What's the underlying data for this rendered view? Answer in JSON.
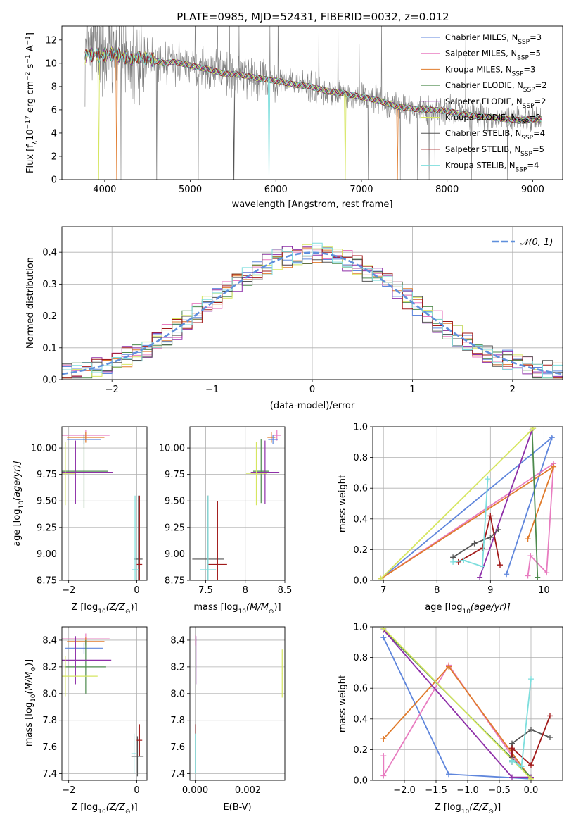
{
  "figure_title": "PLATE=0985, MJD=52431, FIBERID=0032, z=0.012",
  "colors": {
    "Chabrier MILES": "#5f86dc",
    "Salpeter MILES": "#e87cc0",
    "Kroupa MILES": "#e07b2c",
    "Chabrier ELODIE": "#4c8a4c",
    "Salpeter ELODIE": "#8e2fa8",
    "Kroupa ELODIE": "#d6e660",
    "Chabrier STELIB": "#555555",
    "Salpeter STELIB": "#a11a1a",
    "Kroupa STELIB": "#7ddedd",
    "data": "#808080",
    "normal_curve": "#5f8fdc"
  },
  "chart_data": [
    {
      "id": "spectrum",
      "type": "line",
      "xlabel": "wavelength [Angstrom, rest frame]",
      "ylabel_main": "Flux [f",
      "ylabel_sub": "λ",
      "ylabel_rest": "10",
      "ylabel_sup1": "−17",
      "ylabel_tail1": " erg cm",
      "ylabel_sup2": "−2",
      "ylabel_tail2": " s",
      "ylabel_sup3": "−1",
      "ylabel_tail3": " A",
      "ylabel_sup4": "−1",
      "ylabel_end": "]",
      "xlim": [
        3500,
        9350
      ],
      "ylim": [
        0,
        13.2
      ],
      "xticks": [
        4000,
        5000,
        6000,
        7000,
        8000,
        9000
      ],
      "yticks": [
        0,
        2,
        4,
        6,
        8,
        10,
        12
      ],
      "legend_position": "top-right",
      "legend": [
        {
          "base": "Chabrier MILES, N",
          "sub": "SSP",
          "rest": "=3"
        },
        {
          "base": "Salpeter MILES, N",
          "sub": "SSP",
          "rest": "=5"
        },
        {
          "base": "Kroupa MILES, N",
          "sub": "SSP",
          "rest": "=3"
        },
        {
          "base": "Chabrier ELODIE, N",
          "sub": "SSP",
          "rest": "=2"
        },
        {
          "base": "Salpeter ELODIE, N",
          "sub": "SSP",
          "rest": "=2"
        },
        {
          "base": "Kroupa ELODIE, N",
          "sub": "SSP",
          "rest": "=2"
        },
        {
          "base": "Chabrier STELIB, N",
          "sub": "SSP",
          "rest": "=4"
        },
        {
          "base": "Salpeter STELIB, N",
          "sub": "SSP",
          "rest": "=5"
        },
        {
          "base": "Kroupa STELIB, N",
          "sub": "SSP",
          "rest": "=4"
        }
      ],
      "model_x": [
        3750,
        3800,
        3850,
        3900,
        3950,
        4000,
        4100,
        4200,
        4300,
        4400,
        4500,
        4600,
        4700,
        4800,
        4900,
        5000,
        5200,
        5400,
        5600,
        5800,
        6000,
        6200,
        6400,
        6600,
        6800,
        7000,
        7200,
        7400,
        7600,
        7800,
        8000,
        8200,
        8400,
        8600,
        8800,
        9000,
        9100
      ],
      "model_y": [
        10.2,
        10.9,
        10.7,
        10.8,
        10.6,
        10.7,
        10.8,
        10.6,
        10.3,
        10.5,
        10.4,
        10.2,
        10.0,
        10.1,
        10.0,
        9.8,
        9.5,
        9.1,
        9.0,
        8.7,
        8.5,
        8.2,
        8.0,
        7.6,
        7.4,
        7.1,
        6.8,
        6.3,
        6.1,
        6.0,
        5.9,
        5.6,
        5.4,
        5.3,
        5.1,
        5.2,
        5.2
      ],
      "model_dips": [
        {
          "model": "Kroupa ELODIE",
          "x": [
            3930,
            6810
          ]
        },
        {
          "model": "Kroupa MILES",
          "x": [
            4140,
            7420
          ]
        },
        {
          "model": "Kroupa STELIB",
          "x": [
            5920
          ]
        },
        {
          "model": "Chabrier STELIB",
          "x": [
            5510
          ]
        }
      ]
    },
    {
      "id": "residuals",
      "type": "histogram",
      "xlabel": "(data-model)/error",
      "ylabel": "Normed distribution",
      "xlim": [
        -2.5,
        2.5
      ],
      "ylim": [
        0,
        0.48
      ],
      "xticks": [
        -2,
        -1,
        0,
        1,
        2
      ],
      "yticks": [
        0.0,
        0.1,
        0.2,
        0.3,
        0.4
      ],
      "legend_position": "top-right",
      "legend": [
        {
          "text": "𝒩(0, 1)"
        }
      ],
      "bin_width": 0.1
    },
    {
      "id": "age-vs-Z",
      "type": "errorbar",
      "xlabel": "Z [log",
      "xlabel_sub": "10",
      "xlabel_rest": "(Z/Z",
      "xlabel_sub2": "⊙",
      "xlabel_end": ")]",
      "ylabel": "age  [log",
      "ylabel_sub": "10",
      "ylabel_rest": "(age/yr)]",
      "xlim": [
        -2.2,
        0.3
      ],
      "ylim": [
        8.75,
        10.2
      ],
      "xticks": [
        -2,
        0
      ],
      "yticks": [
        8.75,
        9.0,
        9.25,
        9.5,
        9.75,
        10.0
      ],
      "points": [
        {
          "model": "Salpeter MILES",
          "x": -1.5,
          "y": 10.12,
          "xerr": 0.7,
          "yerr": 0.05
        },
        {
          "model": "Kroupa MILES",
          "x": -1.5,
          "y": 10.1,
          "xerr": 0.55,
          "yerr": 0.05
        },
        {
          "model": "Chabrier MILES",
          "x": -1.55,
          "y": 10.08,
          "xerr": 0.5,
          "yerr": 0.04
        },
        {
          "model": "Chabrier ELODIE",
          "x": -1.55,
          "y": 9.78,
          "xerr": 0.7,
          "yerr": 0.35
        },
        {
          "model": "Salpeter ELODIE",
          "x": -1.8,
          "y": 9.77,
          "xerr": 1.1,
          "yerr": 0.3
        },
        {
          "model": "Kroupa ELODIE",
          "x": -2.1,
          "y": 9.76,
          "xerr": 0.3,
          "yerr": 0.3
        },
        {
          "model": "Chabrier STELIB",
          "x": 0.05,
          "y": 8.95,
          "xerr": 0.12,
          "yerr": 0.6
        },
        {
          "model": "Salpeter STELIB",
          "x": 0.08,
          "y": 8.9,
          "xerr": 0.08,
          "yerr": 0.65
        },
        {
          "model": "Kroupa STELIB",
          "x": -0.05,
          "y": 8.85,
          "xerr": 0.1,
          "yerr": 0.7
        }
      ]
    },
    {
      "id": "age-vs-mass",
      "type": "errorbar",
      "xlabel": "mass [log",
      "xlabel_sub": "10",
      "xlabel_rest": "(M/M",
      "xlabel_sub2": "⊙",
      "xlabel_end": ")]",
      "xlim": [
        7.3,
        8.5
      ],
      "ylim": [
        8.75,
        10.2
      ],
      "xticks": [
        7.5,
        8.0,
        8.5
      ],
      "yticks": [
        8.75,
        9.0,
        9.25,
        9.5,
        9.75,
        10.0
      ],
      "points": [
        {
          "model": "Salpeter MILES",
          "x": 8.4,
          "y": 10.12,
          "xerr": 0.05,
          "yerr": 0.05
        },
        {
          "model": "Kroupa MILES",
          "x": 8.33,
          "y": 10.1,
          "xerr": 0.05,
          "yerr": 0.05
        },
        {
          "model": "Chabrier MILES",
          "x": 8.35,
          "y": 10.08,
          "xerr": 0.06,
          "yerr": 0.04
        },
        {
          "model": "Chabrier ELODIE",
          "x": 8.2,
          "y": 9.78,
          "xerr": 0.1,
          "yerr": 0.3
        },
        {
          "model": "Salpeter ELODIE",
          "x": 8.25,
          "y": 9.77,
          "xerr": 0.18,
          "yerr": 0.3
        },
        {
          "model": "Kroupa ELODIE",
          "x": 8.14,
          "y": 9.76,
          "xerr": 0.13,
          "yerr": 0.3
        },
        {
          "model": "Chabrier STELIB",
          "x": 7.53,
          "y": 8.95,
          "xerr": 0.2,
          "yerr": 0.6
        },
        {
          "model": "Salpeter STELIB",
          "x": 7.65,
          "y": 8.9,
          "xerr": 0.12,
          "yerr": 0.6
        },
        {
          "model": "Kroupa STELIB",
          "x": 7.53,
          "y": 8.85,
          "xerr": 0.1,
          "yerr": 0.7
        }
      ]
    },
    {
      "id": "massweight-vs-age",
      "type": "line",
      "xlabel": "age  [log",
      "xlabel_sub": "10",
      "xlabel_rest": "(age/yr)]",
      "ylabel": "mass weight",
      "xlim": [
        6.8,
        10.35
      ],
      "ylim": [
        0,
        1.0
      ],
      "xticks": [
        7,
        8,
        9,
        10
      ],
      "yticks": [
        0.0,
        0.2,
        0.4,
        0.6,
        0.8,
        1.0
      ],
      "series": [
        {
          "model": "Chabrier MILES",
          "x": [
            9.3,
            10.15,
            6.95
          ],
          "y": [
            0.04,
            0.93,
            0.01
          ]
        },
        {
          "model": "Salpeter MILES",
          "x": [
            9.7,
            9.75,
            10.05,
            10.18,
            6.95
          ],
          "y": [
            0.03,
            0.16,
            0.05,
            0.76,
            0.01
          ]
        },
        {
          "model": "Kroupa MILES",
          "x": [
            9.7,
            10.18,
            6.95
          ],
          "y": [
            0.27,
            0.74,
            0.01
          ]
        },
        {
          "model": "Chabrier ELODIE",
          "x": [
            9.78,
            9.88
          ],
          "y": [
            0.98,
            0.02
          ]
        },
        {
          "model": "Salpeter ELODIE",
          "x": [
            9.78,
            8.8
          ],
          "y": [
            0.98,
            0.02
          ]
        },
        {
          "model": "Kroupa ELODIE",
          "x": [
            9.8,
            6.95
          ],
          "y": [
            0.99,
            0.01
          ]
        },
        {
          "model": "Chabrier STELIB",
          "x": [
            8.3,
            8.7,
            9.0,
            9.15
          ],
          "y": [
            0.15,
            0.24,
            0.28,
            0.33
          ]
        },
        {
          "model": "Salpeter STELIB",
          "x": [
            8.4,
            8.85,
            9.0,
            9.18
          ],
          "y": [
            0.12,
            0.21,
            0.42,
            0.1
          ]
        },
        {
          "model": "Kroupa STELIB",
          "x": [
            8.3,
            8.5,
            8.85,
            8.95
          ],
          "y": [
            0.12,
            0.13,
            0.09,
            0.66
          ]
        }
      ]
    },
    {
      "id": "mass-vs-Z",
      "type": "errorbar",
      "xlabel": "Z [log",
      "xlabel_sub": "10",
      "xlabel_rest": "(Z/Z",
      "xlabel_sub2": "⊙",
      "xlabel_end": ")]",
      "ylabel": "mass [log",
      "ylabel_sub": "10",
      "ylabel_rest": "(M/M",
      "ylabel_sub2": "⊙",
      "ylabel_end": ")]",
      "xlim": [
        -2.2,
        0.3
      ],
      "ylim": [
        7.35,
        8.5
      ],
      "xticks": [
        -2,
        0
      ],
      "yticks": [
        7.4,
        7.6,
        7.8,
        8.0,
        8.2,
        8.4
      ],
      "points": [
        {
          "model": "Salpeter MILES",
          "x": -1.5,
          "y": 8.41,
          "xerr": 0.7,
          "yerr": 0.04
        },
        {
          "model": "Kroupa MILES",
          "x": -1.5,
          "y": 8.39,
          "xerr": 0.55,
          "yerr": 0.03
        },
        {
          "model": "Chabrier MILES",
          "x": -1.55,
          "y": 8.34,
          "xerr": 0.55,
          "yerr": 0.04
        },
        {
          "model": "Chabrier ELODIE",
          "x": -1.5,
          "y": 8.2,
          "xerr": 0.6,
          "yerr": 0.2
        },
        {
          "model": "Salpeter ELODIE",
          "x": -1.8,
          "y": 8.25,
          "xerr": 1.05,
          "yerr": 0.18
        },
        {
          "model": "Kroupa ELODIE",
          "x": -2.1,
          "y": 8.13,
          "xerr": 0.95,
          "yerr": 0.15
        },
        {
          "model": "Chabrier STELIB",
          "x": 0.02,
          "y": 7.53,
          "xerr": 0.18,
          "yerr": 0.15
        },
        {
          "model": "Salpeter STELIB",
          "x": 0.08,
          "y": 7.65,
          "xerr": 0.08,
          "yerr": 0.12
        },
        {
          "model": "Kroupa STELIB",
          "x": -0.08,
          "y": 7.55,
          "xerr": 0.08,
          "yerr": 0.15
        }
      ]
    },
    {
      "id": "mass-vs-ebv",
      "type": "errorbar",
      "xlabel": "E(B-V)",
      "xlim": [
        -0.0002,
        0.0034
      ],
      "ylim": [
        7.35,
        8.5
      ],
      "xticks": [
        0.0,
        0.002
      ],
      "xticklabels": [
        "0.000",
        "0.002"
      ],
      "yticks": [
        7.4,
        7.6,
        7.8,
        8.0,
        8.2,
        8.4
      ],
      "points": [
        {
          "model": "Salpeter MILES",
          "x": 2e-05,
          "y": 8.4,
          "xerr": 1e-05,
          "yerr": 0.04
        },
        {
          "model": "Salpeter ELODIE",
          "x": 3e-05,
          "y": 8.25,
          "xerr": 1e-05,
          "yerr": 0.18
        },
        {
          "model": "Kroupa ELODIE",
          "x": 0.0033,
          "y": 8.15,
          "xerr": 1e-05,
          "yerr": 0.18
        },
        {
          "model": "Salpeter STELIB",
          "x": 2e-05,
          "y": 7.65,
          "xerr": 1e-05,
          "yerr": 0.12
        },
        {
          "model": "Kroupa STELIB",
          "x": 1e-05,
          "y": 7.55,
          "xerr": 1e-05,
          "yerr": 0.15
        }
      ]
    },
    {
      "id": "massweight-vs-Z",
      "type": "line",
      "xlabel": "Z [log",
      "xlabel_sub": "10",
      "xlabel_rest": "(Z/Z",
      "xlabel_sub2": "⊙",
      "xlabel_end": ")]",
      "ylabel": "mass weight",
      "xlim": [
        -2.5,
        0.5
      ],
      "ylim": [
        0,
        1.0
      ],
      "xticks": [
        -2.0,
        -1.5,
        -1.0,
        -0.5,
        0.0
      ],
      "xticklabels": [
        "−2.0",
        "−1.5",
        "−1.0",
        "−0.5",
        "0.0"
      ],
      "yticks": [
        0.0,
        0.2,
        0.4,
        0.6,
        0.8,
        1.0
      ],
      "series": [
        {
          "model": "Chabrier MILES",
          "x": [
            -2.33,
            -1.3,
            0.0
          ],
          "y": [
            0.93,
            0.04,
            0.01
          ]
        },
        {
          "model": "Salpeter MILES",
          "x": [
            -2.33,
            -2.33,
            -1.3,
            -0.3,
            0.0
          ],
          "y": [
            0.16,
            0.03,
            0.75,
            0.16,
            0.01
          ]
        },
        {
          "model": "Kroupa MILES",
          "x": [
            -2.33,
            -1.3,
            0.0
          ],
          "y": [
            0.27,
            0.74,
            0.01
          ]
        },
        {
          "model": "Chabrier ELODIE",
          "x": [
            -2.33,
            0.0
          ],
          "y": [
            0.98,
            0.02
          ]
        },
        {
          "model": "Salpeter ELODIE",
          "x": [
            -2.33,
            -0.3,
            0.0
          ],
          "y": [
            0.98,
            0.02,
            0.02
          ]
        },
        {
          "model": "Kroupa ELODIE",
          "x": [
            -2.33,
            0.0
          ],
          "y": [
            0.99,
            0.01
          ]
        },
        {
          "model": "Chabrier STELIB",
          "x": [
            -0.3,
            -0.3,
            0.0,
            0.3
          ],
          "y": [
            0.15,
            0.24,
            0.33,
            0.28
          ]
        },
        {
          "model": "Salpeter STELIB",
          "x": [
            -0.3,
            -0.3,
            0.0,
            0.3
          ],
          "y": [
            0.12,
            0.21,
            0.1,
            0.42
          ]
        },
        {
          "model": "Kroupa STELIB",
          "x": [
            -0.3,
            -0.3,
            -0.15,
            0.0
          ],
          "y": [
            0.12,
            0.13,
            0.09,
            0.66
          ]
        }
      ]
    }
  ]
}
